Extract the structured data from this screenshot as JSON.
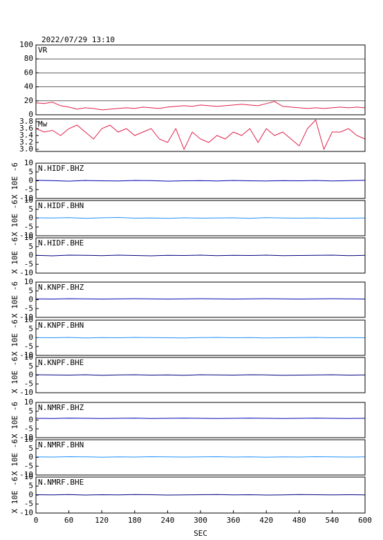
{
  "chart_data": [
    {
      "type": "line",
      "title": "2022/07/29 13:10",
      "label": "VR",
      "color": "#e0204a",
      "grid": true,
      "xlim": [
        0,
        600
      ],
      "ylim": [
        0,
        100
      ],
      "yticks": [
        0,
        20,
        40,
        60,
        80,
        100
      ],
      "x": [
        0,
        15,
        30,
        45,
        60,
        75,
        90,
        105,
        120,
        135,
        150,
        165,
        180,
        195,
        210,
        225,
        240,
        255,
        270,
        285,
        300,
        315,
        330,
        345,
        360,
        375,
        390,
        405,
        420,
        435,
        450,
        465,
        480,
        495,
        510,
        525,
        540,
        555,
        570,
        585,
        600
      ],
      "values": [
        17,
        16,
        18,
        13,
        11,
        8,
        10,
        9,
        7,
        8,
        9,
        10,
        9,
        11,
        10,
        9,
        11,
        12,
        13,
        12,
        14,
        13,
        12,
        13,
        14,
        15,
        14,
        13,
        16,
        19,
        12,
        11,
        10,
        9,
        10,
        9,
        10,
        11,
        10,
        11,
        10
      ]
    },
    {
      "type": "line",
      "label": "Mw",
      "color": "#e0204a",
      "grid": false,
      "xlim": [
        0,
        600
      ],
      "ylim": [
        2.94,
        3.88
      ],
      "yticks": [
        {
          "value": 3,
          "label": "3.0"
        },
        3.2,
        3.4,
        3.6,
        3.8
      ],
      "x": [
        0,
        15,
        30,
        45,
        60,
        75,
        90,
        105,
        120,
        135,
        150,
        165,
        180,
        195,
        210,
        225,
        240,
        255,
        270,
        285,
        300,
        315,
        330,
        345,
        360,
        375,
        390,
        405,
        420,
        435,
        450,
        465,
        480,
        495,
        510,
        525,
        540,
        555,
        570,
        585,
        600
      ],
      "values": [
        3.6,
        3.5,
        3.55,
        3.4,
        3.6,
        3.7,
        3.5,
        3.3,
        3.6,
        3.7,
        3.5,
        3.6,
        3.4,
        3.5,
        3.6,
        3.3,
        3.2,
        3.6,
        3.0,
        3.5,
        3.3,
        3.2,
        3.4,
        3.3,
        3.5,
        3.4,
        3.6,
        3.2,
        3.6,
        3.4,
        3.5,
        3.3,
        3.1,
        3.6,
        3.85,
        3.0,
        3.5,
        3.5,
        3.6,
        3.4,
        3.3
      ]
    },
    {
      "type": "line",
      "label": "N.HIDF.BHZ",
      "ylabel": "X 10E -6",
      "color": "#0000b0",
      "grid": false,
      "xlim": [
        0,
        600
      ],
      "ylim": [
        -10,
        10
      ],
      "yticks": [
        -10,
        -5,
        0,
        5,
        10
      ],
      "x": [
        0,
        30,
        60,
        90,
        120,
        150,
        180,
        210,
        240,
        270,
        300,
        330,
        360,
        390,
        420,
        450,
        480,
        510,
        540,
        570,
        600
      ],
      "values": [
        0.3,
        0.1,
        -0.2,
        0.2,
        0,
        -0.1,
        0.2,
        0.1,
        -0.2,
        0,
        0.1,
        -0.1,
        0.2,
        0,
        -0.1,
        0.1,
        0,
        0.2,
        -0.1,
        0.1,
        0.3
      ]
    },
    {
      "type": "line",
      "label": "N.HIDF.BHN",
      "ylabel": "X 10E -6",
      "color": "#1e90ff",
      "grid": false,
      "xlim": [
        0,
        600
      ],
      "ylim": [
        -10,
        10
      ],
      "yticks": [
        -10,
        -5,
        0,
        5,
        10
      ],
      "x": [
        0,
        30,
        60,
        90,
        120,
        150,
        180,
        210,
        240,
        270,
        300,
        330,
        360,
        390,
        420,
        450,
        480,
        510,
        540,
        570,
        600
      ],
      "values": [
        0.2,
        0.1,
        0.3,
        -0.1,
        0.2,
        0.4,
        0,
        0.1,
        -0.1,
        0.2,
        0,
        0.1,
        0.2,
        -0.1,
        0.3,
        0.1,
        0,
        0.1,
        -0.1,
        0,
        0.1
      ]
    },
    {
      "type": "line",
      "label": "N.HIDF.BHE",
      "ylabel": "X 10E -6",
      "color": "#000080",
      "grid": false,
      "xlim": [
        0,
        600
      ],
      "ylim": [
        -10,
        10
      ],
      "yticks": [
        -10,
        -5,
        0,
        5,
        10
      ],
      "x": [
        0,
        30,
        60,
        90,
        120,
        150,
        180,
        210,
        240,
        270,
        300,
        330,
        360,
        390,
        420,
        450,
        480,
        510,
        540,
        570,
        600
      ],
      "values": [
        0.1,
        -0.2,
        0.2,
        0.1,
        -0.1,
        0.2,
        0,
        -0.2,
        0.1,
        0,
        0.2,
        -0.1,
        0.1,
        0,
        0.2,
        -0.1,
        0,
        0.1,
        0.2,
        -0.1,
        0.1
      ]
    },
    {
      "type": "line",
      "label": "N.KNPF.BHZ",
      "ylabel": "X 10E -6",
      "color": "#0000b0",
      "grid": false,
      "xlim": [
        0,
        600
      ],
      "ylim": [
        -10,
        10
      ],
      "yticks": [
        -10,
        -5,
        0,
        5,
        10
      ],
      "x": [
        0,
        30,
        60,
        90,
        120,
        150,
        180,
        210,
        240,
        270,
        300,
        330,
        360,
        390,
        420,
        450,
        480,
        510,
        540,
        570,
        600
      ],
      "values": [
        0.5,
        0.4,
        0.6,
        0.5,
        0.4,
        0.5,
        0.6,
        0.5,
        0.4,
        0.5,
        0.6,
        0.5,
        0.4,
        0.5,
        0.6,
        0.5,
        0.4,
        0.5,
        0.6,
        0.5,
        0.4
      ]
    },
    {
      "type": "line",
      "label": "N.KNPF.BHN",
      "ylabel": "X 10E -6",
      "color": "#1e90ff",
      "grid": false,
      "xlim": [
        0,
        600
      ],
      "ylim": [
        -10,
        10
      ],
      "yticks": [
        -10,
        -5,
        0,
        5,
        10
      ],
      "x": [
        0,
        30,
        60,
        90,
        120,
        150,
        180,
        210,
        240,
        270,
        300,
        330,
        360,
        390,
        420,
        450,
        480,
        510,
        540,
        570,
        600
      ],
      "values": [
        0.1,
        0,
        0.2,
        -0.1,
        0.1,
        0,
        0.2,
        0.1,
        0,
        -0.1,
        0.1,
        0.2,
        0,
        0.1,
        -0.1,
        0,
        0.1,
        0.2,
        0,
        0.1,
        0
      ]
    },
    {
      "type": "line",
      "label": "N.KNPF.BHE",
      "ylabel": "X 10E -6",
      "color": "#000080",
      "grid": false,
      "xlim": [
        0,
        600
      ],
      "ylim": [
        -10,
        10
      ],
      "yticks": [
        -10,
        -5,
        0,
        5,
        10
      ],
      "x": [
        0,
        30,
        60,
        90,
        120,
        150,
        180,
        210,
        240,
        270,
        300,
        330,
        360,
        390,
        420,
        450,
        480,
        510,
        540,
        570,
        600
      ],
      "values": [
        0.2,
        0.1,
        0,
        0.2,
        -0.1,
        0.1,
        0.2,
        0,
        0.1,
        -0.1,
        0.2,
        0.1,
        0,
        0.2,
        0.1,
        -0.1,
        0,
        0.1,
        0.2,
        0,
        0.1
      ]
    },
    {
      "type": "line",
      "label": "N.NMRF.BHZ",
      "ylabel": "X 10E -6",
      "color": "#0000b0",
      "grid": false,
      "xlim": [
        0,
        600
      ],
      "ylim": [
        -10,
        10
      ],
      "yticks": [
        -10,
        -5,
        0,
        5,
        10
      ],
      "x": [
        0,
        30,
        60,
        90,
        120,
        150,
        180,
        210,
        240,
        270,
        300,
        330,
        360,
        390,
        420,
        450,
        480,
        510,
        540,
        570,
        600
      ],
      "values": [
        1.0,
        0.9,
        1.1,
        1.0,
        0.9,
        1.0,
        1.1,
        0.9,
        1.0,
        1.1,
        1.0,
        0.9,
        1.0,
        1.1,
        1.0,
        0.9,
        1.0,
        1.1,
        1.0,
        0.9,
        1.0
      ]
    },
    {
      "type": "line",
      "label": "N.NMRF.BHN",
      "ylabel": "X 10E -6",
      "color": "#1e90ff",
      "grid": false,
      "xlim": [
        0,
        600
      ],
      "ylim": [
        -10,
        10
      ],
      "yticks": [
        -10,
        -5,
        0,
        5,
        10
      ],
      "x": [
        0,
        30,
        60,
        90,
        120,
        150,
        180,
        210,
        240,
        270,
        300,
        330,
        360,
        390,
        420,
        450,
        480,
        510,
        540,
        570,
        600
      ],
      "values": [
        0.3,
        0.2,
        0.4,
        0.3,
        0.1,
        0.3,
        0.2,
        0.4,
        0.3,
        0.2,
        0.3,
        0.4,
        0.2,
        0.3,
        0.1,
        0.3,
        0.2,
        0.4,
        0.3,
        0.2,
        0.3
      ]
    },
    {
      "type": "line",
      "label": "N.NMRF.BHE",
      "ylabel": "X 10E -6",
      "color": "#000080",
      "grid": false,
      "xlim": [
        0,
        600
      ],
      "ylim": [
        -10,
        10
      ],
      "yticks": [
        -10,
        -5,
        0,
        5,
        10
      ],
      "xticks": [
        0,
        60,
        120,
        180,
        240,
        300,
        360,
        420,
        480,
        540,
        600
      ],
      "xlabel": "SEC",
      "x": [
        0,
        30,
        60,
        90,
        120,
        150,
        180,
        210,
        240,
        270,
        300,
        330,
        360,
        390,
        420,
        450,
        480,
        510,
        540,
        570,
        600
      ],
      "values": [
        0.2,
        0.1,
        0.3,
        0,
        0.2,
        0.1,
        0.3,
        0.2,
        0,
        0.1,
        0.2,
        0.3,
        0.1,
        0.2,
        0,
        0.1,
        0.3,
        0.2,
        0.1,
        0.2,
        0.1
      ]
    }
  ]
}
